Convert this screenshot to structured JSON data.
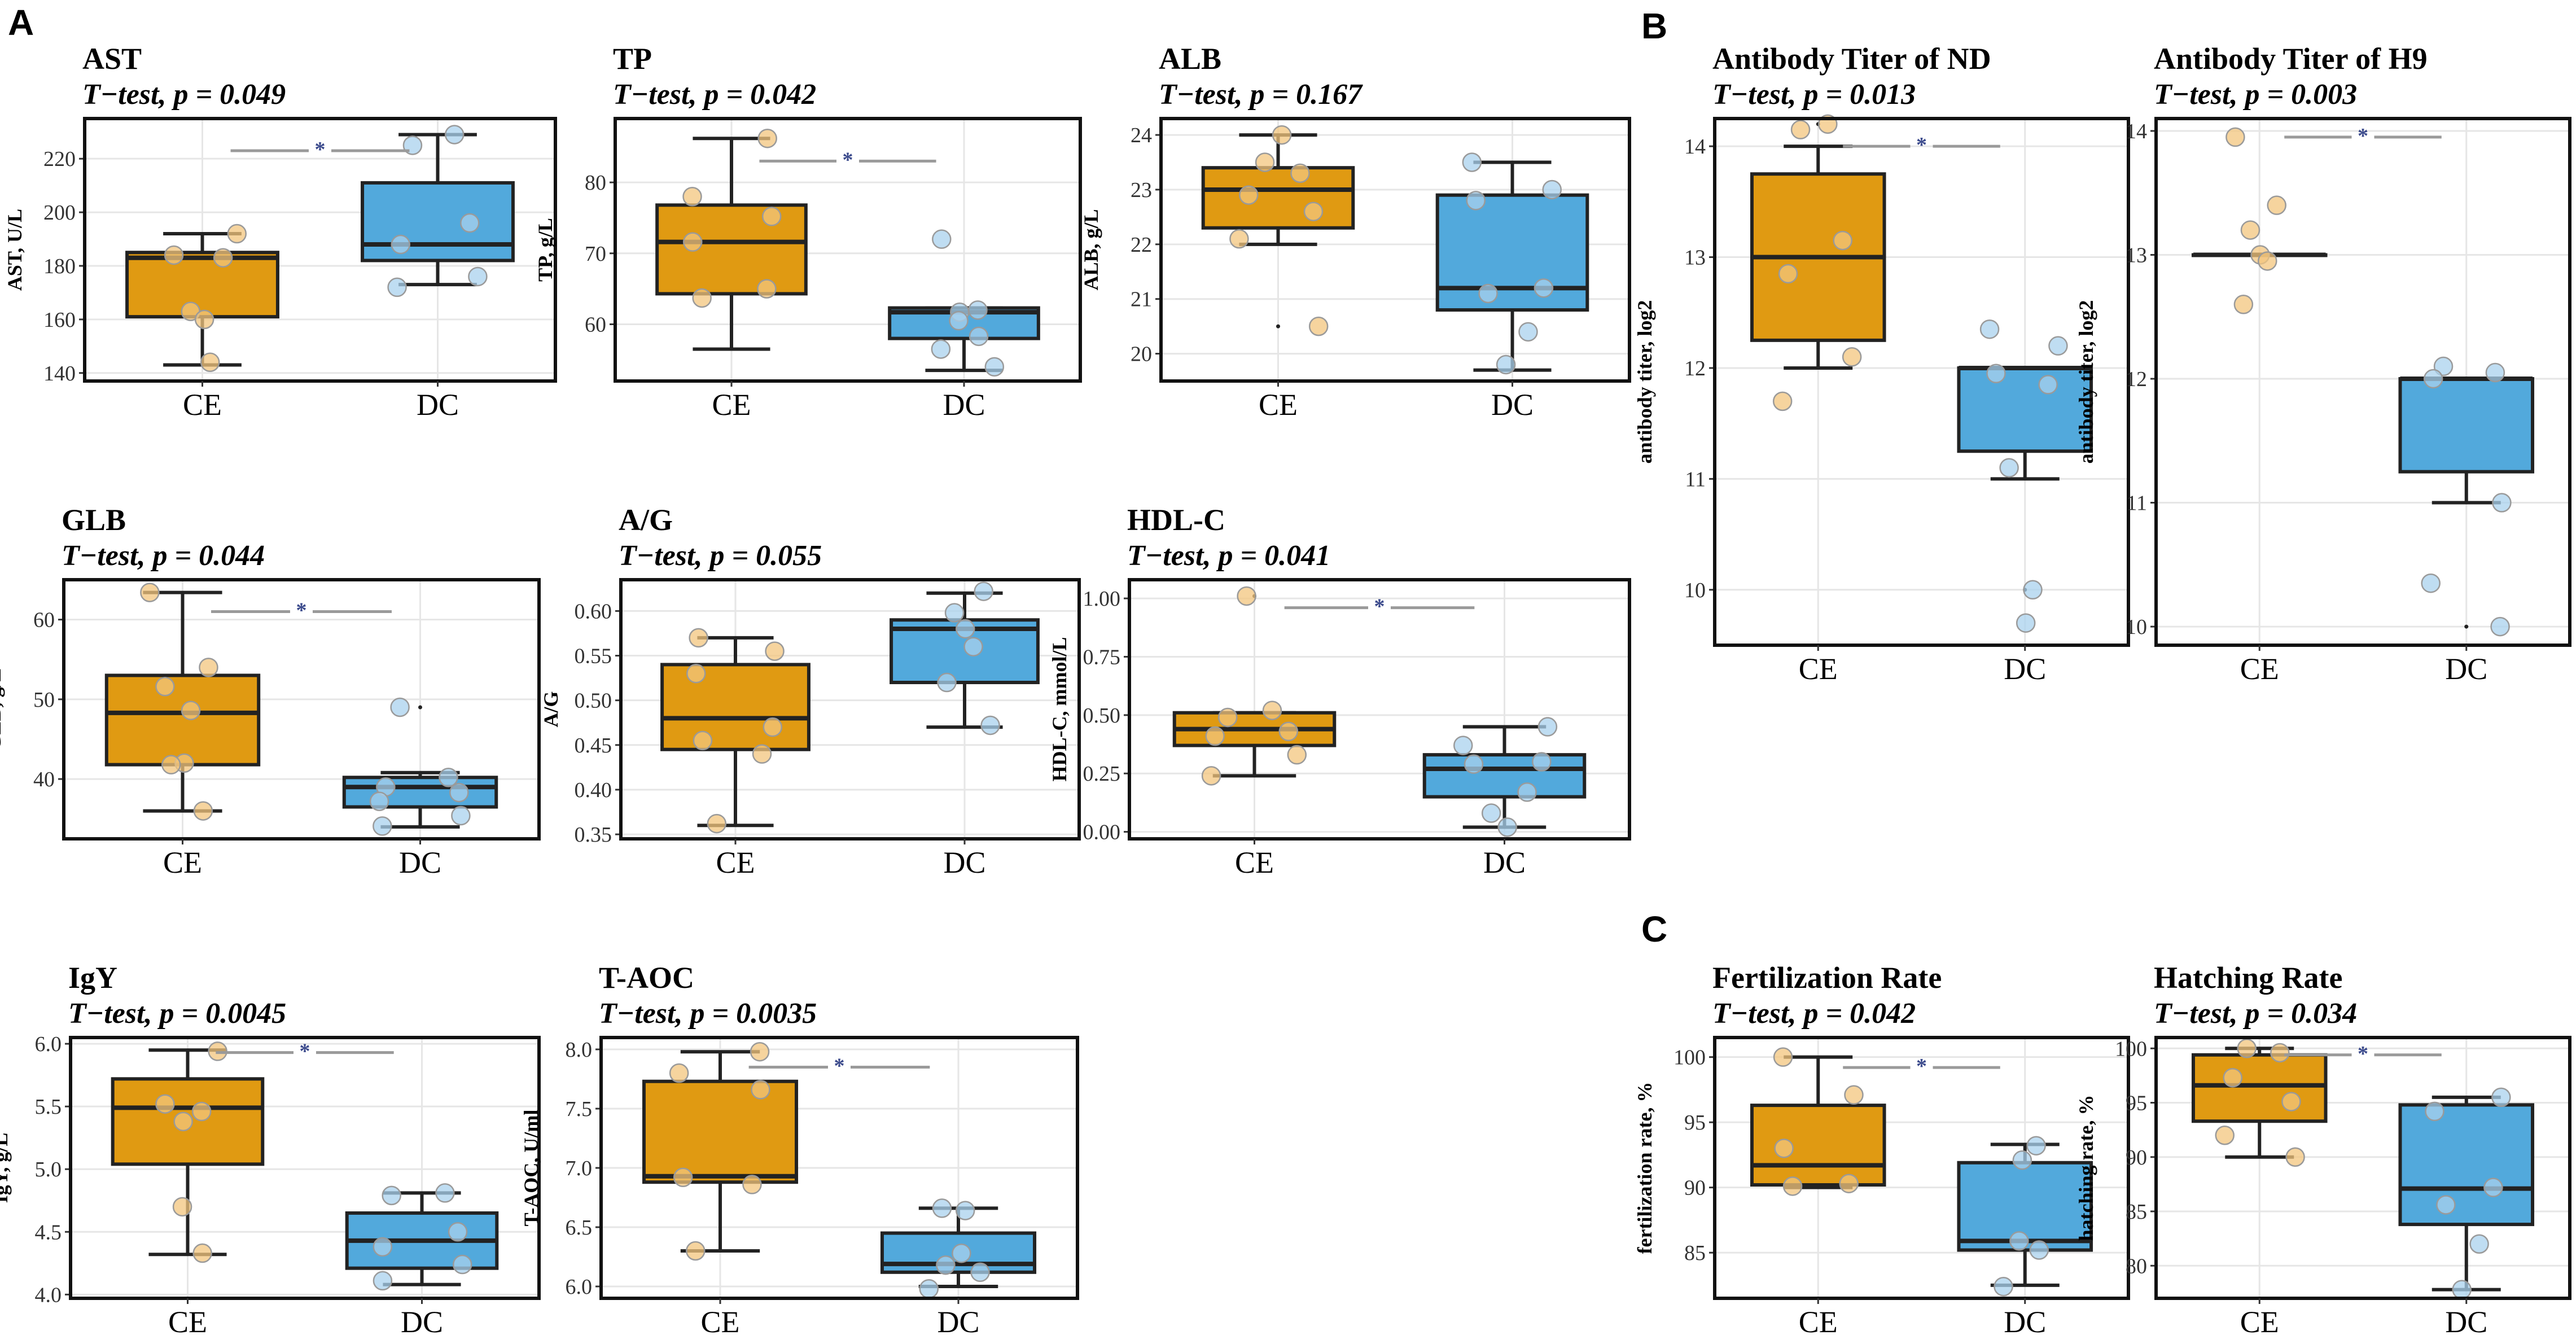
{
  "panel_labels": {
    "a": "A",
    "b": "B",
    "c": "C"
  },
  "colors": {
    "ce_fill": "#E09A12",
    "dc_fill": "#52A9DC",
    "ce_point": "#F3C57E",
    "dc_point": "#A9D2EE",
    "point_stroke": "#9a9a9a",
    "grid": "#e6e6e6",
    "sig_line": "#9a9a9a",
    "sig_star": "#3b4a8c"
  },
  "chart_data": [
    {
      "id": "ast",
      "type": "box",
      "title": "AST",
      "subtitle": "T−test, p = 0.049",
      "ylabel": "AST, U/L",
      "ylim": [
        137,
        235
      ],
      "yticks": [
        140,
        160,
        180,
        200,
        220
      ],
      "categories": [
        "CE",
        "DC"
      ],
      "significance": "*",
      "sig_y": 223,
      "groups": [
        {
          "name": "CE",
          "box": {
            "min": 143,
            "q1": 161,
            "median": 183,
            "q3": 185,
            "max": 192
          },
          "points": [
            192,
            184,
            183,
            163,
            160,
            144
          ]
        },
        {
          "name": "DC",
          "box": {
            "min": 173,
            "q1": 182,
            "median": 188,
            "q3": 211,
            "max": 229
          },
          "points": [
            229,
            225,
            196,
            188,
            176,
            172
          ]
        }
      ]
    },
    {
      "id": "tp",
      "type": "box",
      "title": "TP",
      "subtitle": "T−test, p = 0.042",
      "ylabel": "TP, g/L",
      "ylim": [
        52,
        89
      ],
      "yticks": [
        60,
        70,
        80
      ],
      "categories": [
        "CE",
        "DC"
      ],
      "significance": "*",
      "sig_y": 83,
      "groups": [
        {
          "name": "CE",
          "box": {
            "min": 56.5,
            "q1": 64.3,
            "median": 71.6,
            "q3": 76.8,
            "max": 86.2
          },
          "points": [
            86.2,
            78,
            75.2,
            71.6,
            65,
            63.7
          ]
        },
        {
          "name": "DC",
          "box": {
            "min": 53.5,
            "q1": 58,
            "median": 61.7,
            "q3": 62.3,
            "max": 62.3
          },
          "points": [
            72,
            62,
            61.7,
            60.5,
            58.3,
            56.5,
            54
          ]
        }
      ]
    },
    {
      "id": "alb",
      "type": "box",
      "title": "ALB",
      "subtitle": "T−test, p = 0.167",
      "ylabel": "ALB, g/L",
      "ylim": [
        19.5,
        24.3
      ],
      "yticks": [
        20,
        21,
        22,
        23,
        24
      ],
      "categories": [
        "CE",
        "DC"
      ],
      "significance": "",
      "groups": [
        {
          "name": "CE",
          "box": {
            "min": 22,
            "q1": 22.3,
            "median": 23,
            "q3": 23.4,
            "max": 24
          },
          "points": [
            24,
            23.5,
            23.3,
            22.9,
            22.6,
            22.1,
            20.5
          ],
          "outliers": [
            20.5
          ]
        },
        {
          "name": "DC",
          "box": {
            "min": 19.7,
            "q1": 20.8,
            "median": 21.2,
            "q3": 22.9,
            "max": 23.5
          },
          "points": [
            23.5,
            23,
            22.8,
            21.2,
            21.1,
            20.4,
            19.8
          ]
        }
      ]
    },
    {
      "id": "glb",
      "type": "box",
      "title": "GLB",
      "subtitle": "T−test, p = 0.044",
      "ylabel": "GLB, g/L",
      "ylim": [
        32.5,
        65
      ],
      "yticks": [
        40,
        50,
        60
      ],
      "categories": [
        "CE",
        "DC"
      ],
      "significance": "*",
      "sig_y": 61,
      "groups": [
        {
          "name": "CE",
          "box": {
            "min": 36,
            "q1": 41.8,
            "median": 48.3,
            "q3": 53,
            "max": 63.4
          },
          "points": [
            63.4,
            54,
            51.6,
            48.6,
            42,
            41.8,
            36
          ]
        },
        {
          "name": "DC",
          "box": {
            "min": 34,
            "q1": 36.5,
            "median": 39,
            "q3": 40.2,
            "max": 40.8
          },
          "points": [
            49,
            40.2,
            39,
            38.3,
            37.2,
            35.4,
            34.1
          ],
          "outliers": [
            49
          ]
        }
      ]
    },
    {
      "id": "ag",
      "type": "box",
      "title": "A/G",
      "subtitle": "T−test, p = 0.055",
      "ylabel": "A/G",
      "ylim": [
        0.345,
        0.635
      ],
      "yticks": [
        0.35,
        0.4,
        0.45,
        0.5,
        0.55,
        0.6
      ],
      "categories": [
        "CE",
        "DC"
      ],
      "significance": "",
      "groups": [
        {
          "name": "CE",
          "box": {
            "min": 0.36,
            "q1": 0.445,
            "median": 0.48,
            "q3": 0.54,
            "max": 0.57
          },
          "points": [
            0.57,
            0.555,
            0.53,
            0.47,
            0.455,
            0.44,
            0.362
          ]
        },
        {
          "name": "DC",
          "box": {
            "min": 0.47,
            "q1": 0.52,
            "median": 0.58,
            "q3": 0.59,
            "max": 0.62
          },
          "points": [
            0.622,
            0.598,
            0.58,
            0.56,
            0.52,
            0.472
          ]
        }
      ]
    },
    {
      "id": "hdl",
      "type": "box",
      "title": "HDL-C",
      "subtitle": "T−test, p = 0.041",
      "ylabel": "HDL-C, mmol/L",
      "ylim": [
        -0.03,
        1.08
      ],
      "yticks": [
        0.0,
        0.25,
        0.5,
        0.75,
        1.0
      ],
      "categories": [
        "CE",
        "DC"
      ],
      "significance": "*",
      "sig_y": 0.96,
      "groups": [
        {
          "name": "CE",
          "box": {
            "min": 0.24,
            "q1": 0.37,
            "median": 0.44,
            "q3": 0.51,
            "max": 0.51
          },
          "points": [
            1.01,
            0.52,
            0.49,
            0.43,
            0.41,
            0.33,
            0.24
          ],
          "outliers": [
            1.01
          ]
        },
        {
          "name": "DC",
          "box": {
            "min": 0.02,
            "q1": 0.15,
            "median": 0.27,
            "q3": 0.33,
            "max": 0.45
          },
          "points": [
            0.45,
            0.37,
            0.3,
            0.29,
            0.17,
            0.08,
            0.02
          ]
        }
      ]
    },
    {
      "id": "igy",
      "type": "box",
      "title": "IgY",
      "subtitle": "T−test, p = 0.0045",
      "ylabel": "IgY, g/L",
      "ylim": [
        3.97,
        6.05
      ],
      "yticks": [
        4.0,
        4.5,
        5.0,
        5.5,
        6.0
      ],
      "categories": [
        "CE",
        "DC"
      ],
      "significance": "*",
      "sig_y": 5.93,
      "groups": [
        {
          "name": "CE",
          "box": {
            "min": 4.32,
            "q1": 5.04,
            "median": 5.49,
            "q3": 5.72,
            "max": 5.95
          },
          "points": [
            5.94,
            5.52,
            5.46,
            5.38,
            4.7,
            4.33
          ]
        },
        {
          "name": "DC",
          "box": {
            "min": 4.08,
            "q1": 4.21,
            "median": 4.43,
            "q3": 4.65,
            "max": 4.81
          },
          "points": [
            4.81,
            4.79,
            4.5,
            4.38,
            4.24,
            4.11
          ]
        }
      ]
    },
    {
      "id": "taoc",
      "type": "box",
      "title": "T-AOC",
      "subtitle": "T−test, p = 0.0035",
      "ylabel": "T-AOC, U/ml",
      "ylim": [
        5.9,
        8.1
      ],
      "yticks": [
        6.0,
        6.5,
        7.0,
        7.5,
        8.0
      ],
      "categories": [
        "CE",
        "DC"
      ],
      "significance": "*",
      "sig_y": 7.85,
      "groups": [
        {
          "name": "CE",
          "box": {
            "min": 6.3,
            "q1": 6.88,
            "median": 6.93,
            "q3": 7.73,
            "max": 7.98
          },
          "points": [
            7.98,
            7.8,
            7.66,
            6.92,
            6.86,
            6.3
          ]
        },
        {
          "name": "DC",
          "box": {
            "min": 6.0,
            "q1": 6.12,
            "median": 6.19,
            "q3": 6.45,
            "max": 6.66
          },
          "points": [
            6.66,
            6.64,
            6.28,
            6.18,
            6.12,
            5.98
          ]
        }
      ]
    },
    {
      "id": "nd",
      "type": "box",
      "title": "Antibody Titer of ND",
      "subtitle": "T−test, p = 0.013",
      "ylabel": "antibody titer, log2",
      "ylim": [
        9.5,
        14.25
      ],
      "yticks": [
        10,
        11,
        12,
        13,
        14
      ],
      "categories": [
        "CE",
        "DC"
      ],
      "significance": "*",
      "sig_y": 14.0,
      "groups": [
        {
          "name": "CE",
          "box": {
            "min": 12,
            "q1": 12.25,
            "median": 13,
            "q3": 13.75,
            "max": 14
          },
          "points": [
            14.2,
            14.15,
            13.15,
            12.85,
            12.1,
            11.7
          ],
          "outliers": [
            14.2
          ]
        },
        {
          "name": "DC",
          "box": {
            "min": 11,
            "q1": 11.25,
            "median": 12,
            "q3": 12,
            "max": 12
          },
          "points": [
            12.35,
            12.2,
            11.95,
            11.85,
            11.1,
            10.0,
            9.7
          ],
          "outliers": [
            10.0
          ]
        }
      ]
    },
    {
      "id": "h9",
      "type": "box",
      "title": "Antibody Titer of H9",
      "subtitle": "T−test, p = 0.003",
      "ylabel": "antibody titer, log2",
      "ylim": [
        9.85,
        14.1
      ],
      "yticks": [
        10,
        11,
        12,
        13,
        14
      ],
      "categories": [
        "CE",
        "DC"
      ],
      "significance": "*",
      "sig_y": 13.95,
      "groups": [
        {
          "name": "CE",
          "box": {
            "min": 13,
            "q1": 13,
            "median": 13,
            "q3": 13,
            "max": 13
          },
          "points": [
            13.95,
            13.4,
            13.2,
            13.0,
            12.95,
            12.6
          ]
        },
        {
          "name": "DC",
          "box": {
            "min": 11,
            "q1": 11.25,
            "median": 12,
            "q3": 12,
            "max": 12
          },
          "points": [
            12.1,
            12.05,
            12.0,
            11.0,
            10.35,
            10.0
          ],
          "outliers": [
            10.0
          ]
        }
      ]
    },
    {
      "id": "fert",
      "type": "box",
      "title": "Fertilization Rate",
      "subtitle": "T−test, p = 0.042",
      "ylabel": "fertilization rate, %",
      "ylim": [
        81.5,
        101.5
      ],
      "yticks": [
        85,
        90,
        95,
        100
      ],
      "categories": [
        "CE",
        "DC"
      ],
      "significance": "*",
      "sig_y": 99.2,
      "groups": [
        {
          "name": "CE",
          "box": {
            "min": 90,
            "q1": 90.2,
            "median": 91.7,
            "q3": 96.3,
            "max": 100
          },
          "points": [
            100,
            97.1,
            93,
            90.3,
            90.1
          ]
        },
        {
          "name": "DC",
          "box": {
            "min": 82.5,
            "q1": 85.2,
            "median": 85.9,
            "q3": 91.9,
            "max": 93.3
          },
          "points": [
            93.2,
            92.1,
            85.9,
            85.2,
            82.4
          ]
        }
      ]
    },
    {
      "id": "hatch",
      "type": "box",
      "title": "Hatching Rate",
      "subtitle": "T−test, p = 0.034",
      "ylabel": "hatching rate, %",
      "ylim": [
        77,
        101
      ],
      "yticks": [
        80,
        85,
        90,
        95,
        100
      ],
      "categories": [
        "CE",
        "DC"
      ],
      "significance": "*",
      "sig_y": 99.4,
      "groups": [
        {
          "name": "CE",
          "box": {
            "min": 90,
            "q1": 93.3,
            "median": 96.6,
            "q3": 99.4,
            "max": 100
          },
          "points": [
            100,
            99.6,
            97.3,
            95.1,
            92,
            90
          ]
        },
        {
          "name": "DC",
          "box": {
            "min": 77.8,
            "q1": 83.8,
            "median": 87.1,
            "q3": 94.8,
            "max": 95.5
          },
          "points": [
            95.5,
            94.2,
            87.2,
            85.6,
            82,
            77.8
          ]
        }
      ]
    }
  ]
}
